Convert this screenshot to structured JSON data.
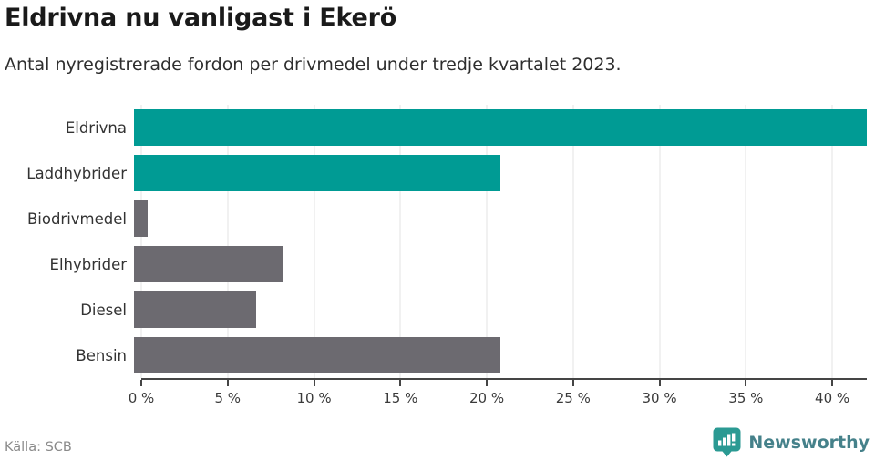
{
  "header": {
    "title": "Eldrivna nu vanligast i Ekerö",
    "subtitle": "Antal nyregistrerade fordon per drivmedel under tredje kvartalet 2023."
  },
  "chart_data": {
    "type": "bar",
    "orientation": "horizontal",
    "title": "Eldrivna nu vanligast i Ekerö",
    "subtitle": "Antal nyregistrerade fordon per drivmedel under tredje kvartalet 2023.",
    "categories": [
      "Eldrivna",
      "Laddhybrider",
      "Biodrivmedel",
      "Elhybrider",
      "Diesel",
      "Bensin"
    ],
    "values": [
      42,
      21,
      0.8,
      8.5,
      7,
      21
    ],
    "unit": "%",
    "xlim": [
      0,
      42
    ],
    "x_ticks": [
      0,
      5,
      10,
      15,
      20,
      25,
      30,
      35,
      40
    ],
    "x_tick_suffix": " %",
    "grid": true,
    "bar_colors": [
      "#009b94",
      "#009b94",
      "#6c6a70",
      "#6c6a70",
      "#6c6a70",
      "#6c6a70"
    ],
    "highlight_color": "#009b94",
    "default_color": "#6c6a70"
  },
  "footer": {
    "source": "Källa: SCB",
    "brand": "Newsworthy",
    "brand_color": "#45818a",
    "logo_icon": "bar-chart-speech-bubble-icon",
    "logo_color": "#2b9a93"
  }
}
